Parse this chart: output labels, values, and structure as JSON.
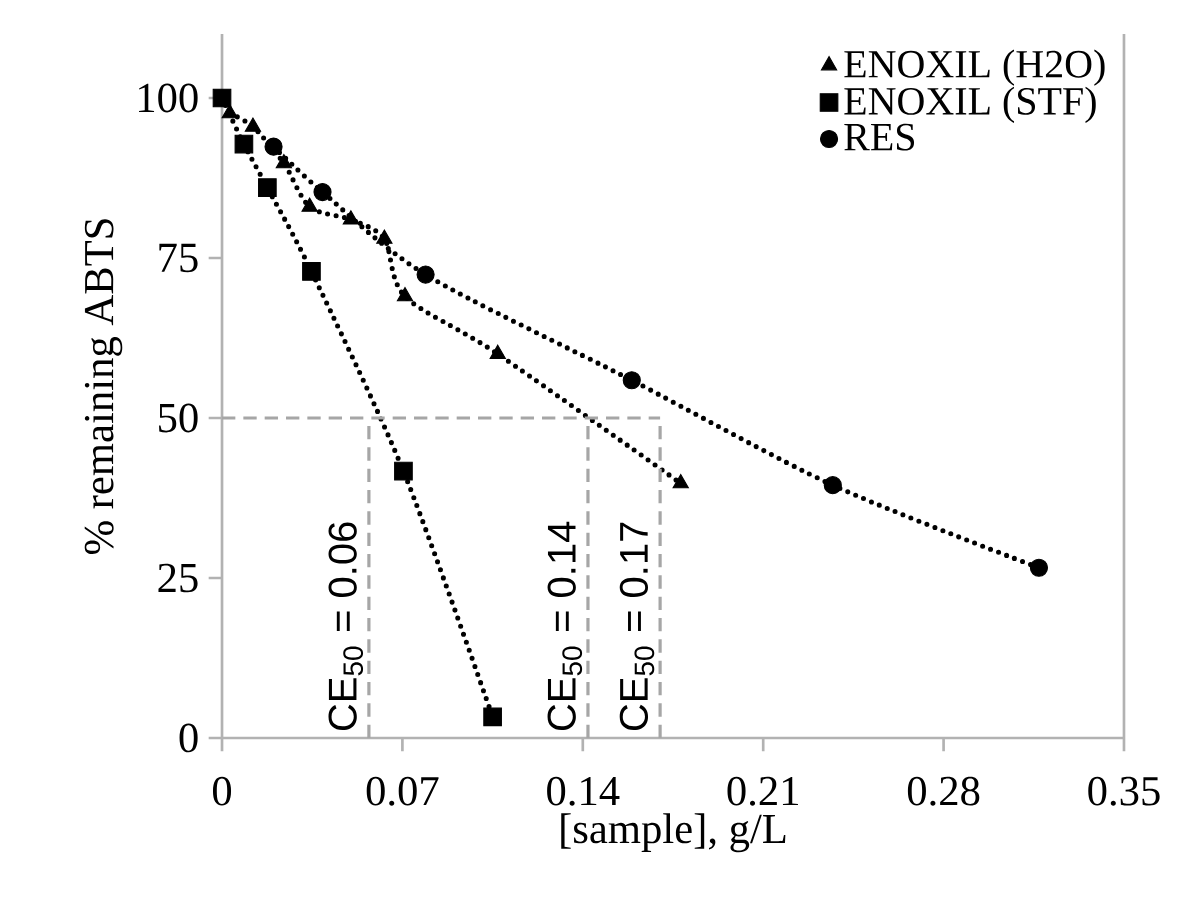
{
  "chart_data": {
    "type": "line",
    "xlabel": "[sample], g/L",
    "ylabel": "% remaining ABTS",
    "xlim": [
      0,
      0.35
    ],
    "ylim": [
      0,
      110
    ],
    "xticks": [
      0,
      0.07,
      0.14,
      0.21,
      0.28,
      0.35
    ],
    "yticks": [
      0,
      25,
      50,
      75,
      100
    ],
    "grid": false,
    "legend": "top right",
    "line_style": "dotted",
    "series": [
      {
        "name": "ENOXIL (H2O)",
        "color": "#000000",
        "marker": "triangle",
        "x": [
          0.003,
          0.012,
          0.024,
          0.034,
          0.05,
          0.063,
          0.071,
          0.107,
          0.178
        ],
        "values": [
          97.6,
          95.5,
          89.8,
          83,
          81,
          78,
          69,
          60,
          39.8
        ]
      },
      {
        "name": "ENOXIL (STF)",
        "color": "#000000",
        "marker": "square",
        "x": [
          0,
          0.0085,
          0.0176,
          0.0347,
          0.0704,
          0.105
        ],
        "values": [
          100,
          92.8,
          86,
          72.9,
          41.7,
          3.3
        ]
      },
      {
        "name": "RES",
        "color": "#000000",
        "marker": "circle",
        "x": [
          0.02,
          0.039,
          0.079,
          0.159,
          0.237,
          0.317
        ],
        "values": [
          92.4,
          85.3,
          72.4,
          55.9,
          39.5,
          26.6
        ]
      }
    ],
    "ref_lines": [
      {
        "axis": "y",
        "value": 50,
        "color": "#a6a6a6",
        "line_style": "dashed"
      },
      {
        "axis": "x",
        "value": 0.057,
        "label": "CE$_{50}$ = 0.06",
        "color": "#a6a6a6",
        "line_style": "dashed"
      },
      {
        "axis": "x",
        "value": 0.142,
        "label": "CE$_{50}$ = 0.14",
        "color": "#a6a6a6",
        "line_style": "dashed"
      },
      {
        "axis": "x",
        "value": 0.17,
        "label": "CE$_{50}$ = 0.17",
        "color": "#a6a6a6",
        "line_style": "dashed"
      }
    ]
  }
}
